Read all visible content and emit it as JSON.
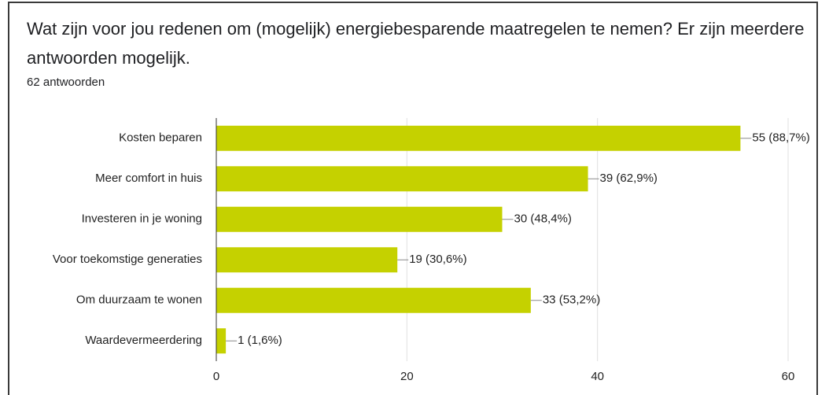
{
  "chart_data": {
    "type": "bar",
    "orientation": "horizontal",
    "title": "Wat zijn voor jou redenen om (mogelijk) energiebesparende maatregelen te nemen? Er zijn meerdere antwoorden mogelijk.",
    "subtitle": "62 antwoorden",
    "categories": [
      "Kosten beparen",
      "Meer comfort in huis",
      "Investeren in je woning",
      "Voor toekomstige generaties",
      "Om duurzaam te wonen",
      "Waardevermeerdering"
    ],
    "values": [
      55,
      39,
      30,
      19,
      33,
      1
    ],
    "value_labels": [
      "55 (88,7%)",
      "39 (62,9%)",
      "30 (48,4%)",
      "19 (30,6%)",
      "33 (53,2%)",
      "1 (1,6%)"
    ],
    "color": "#c5d100",
    "xlim": [
      0,
      60
    ],
    "xticks": [
      0,
      20,
      40,
      60
    ],
    "grid": true
  }
}
